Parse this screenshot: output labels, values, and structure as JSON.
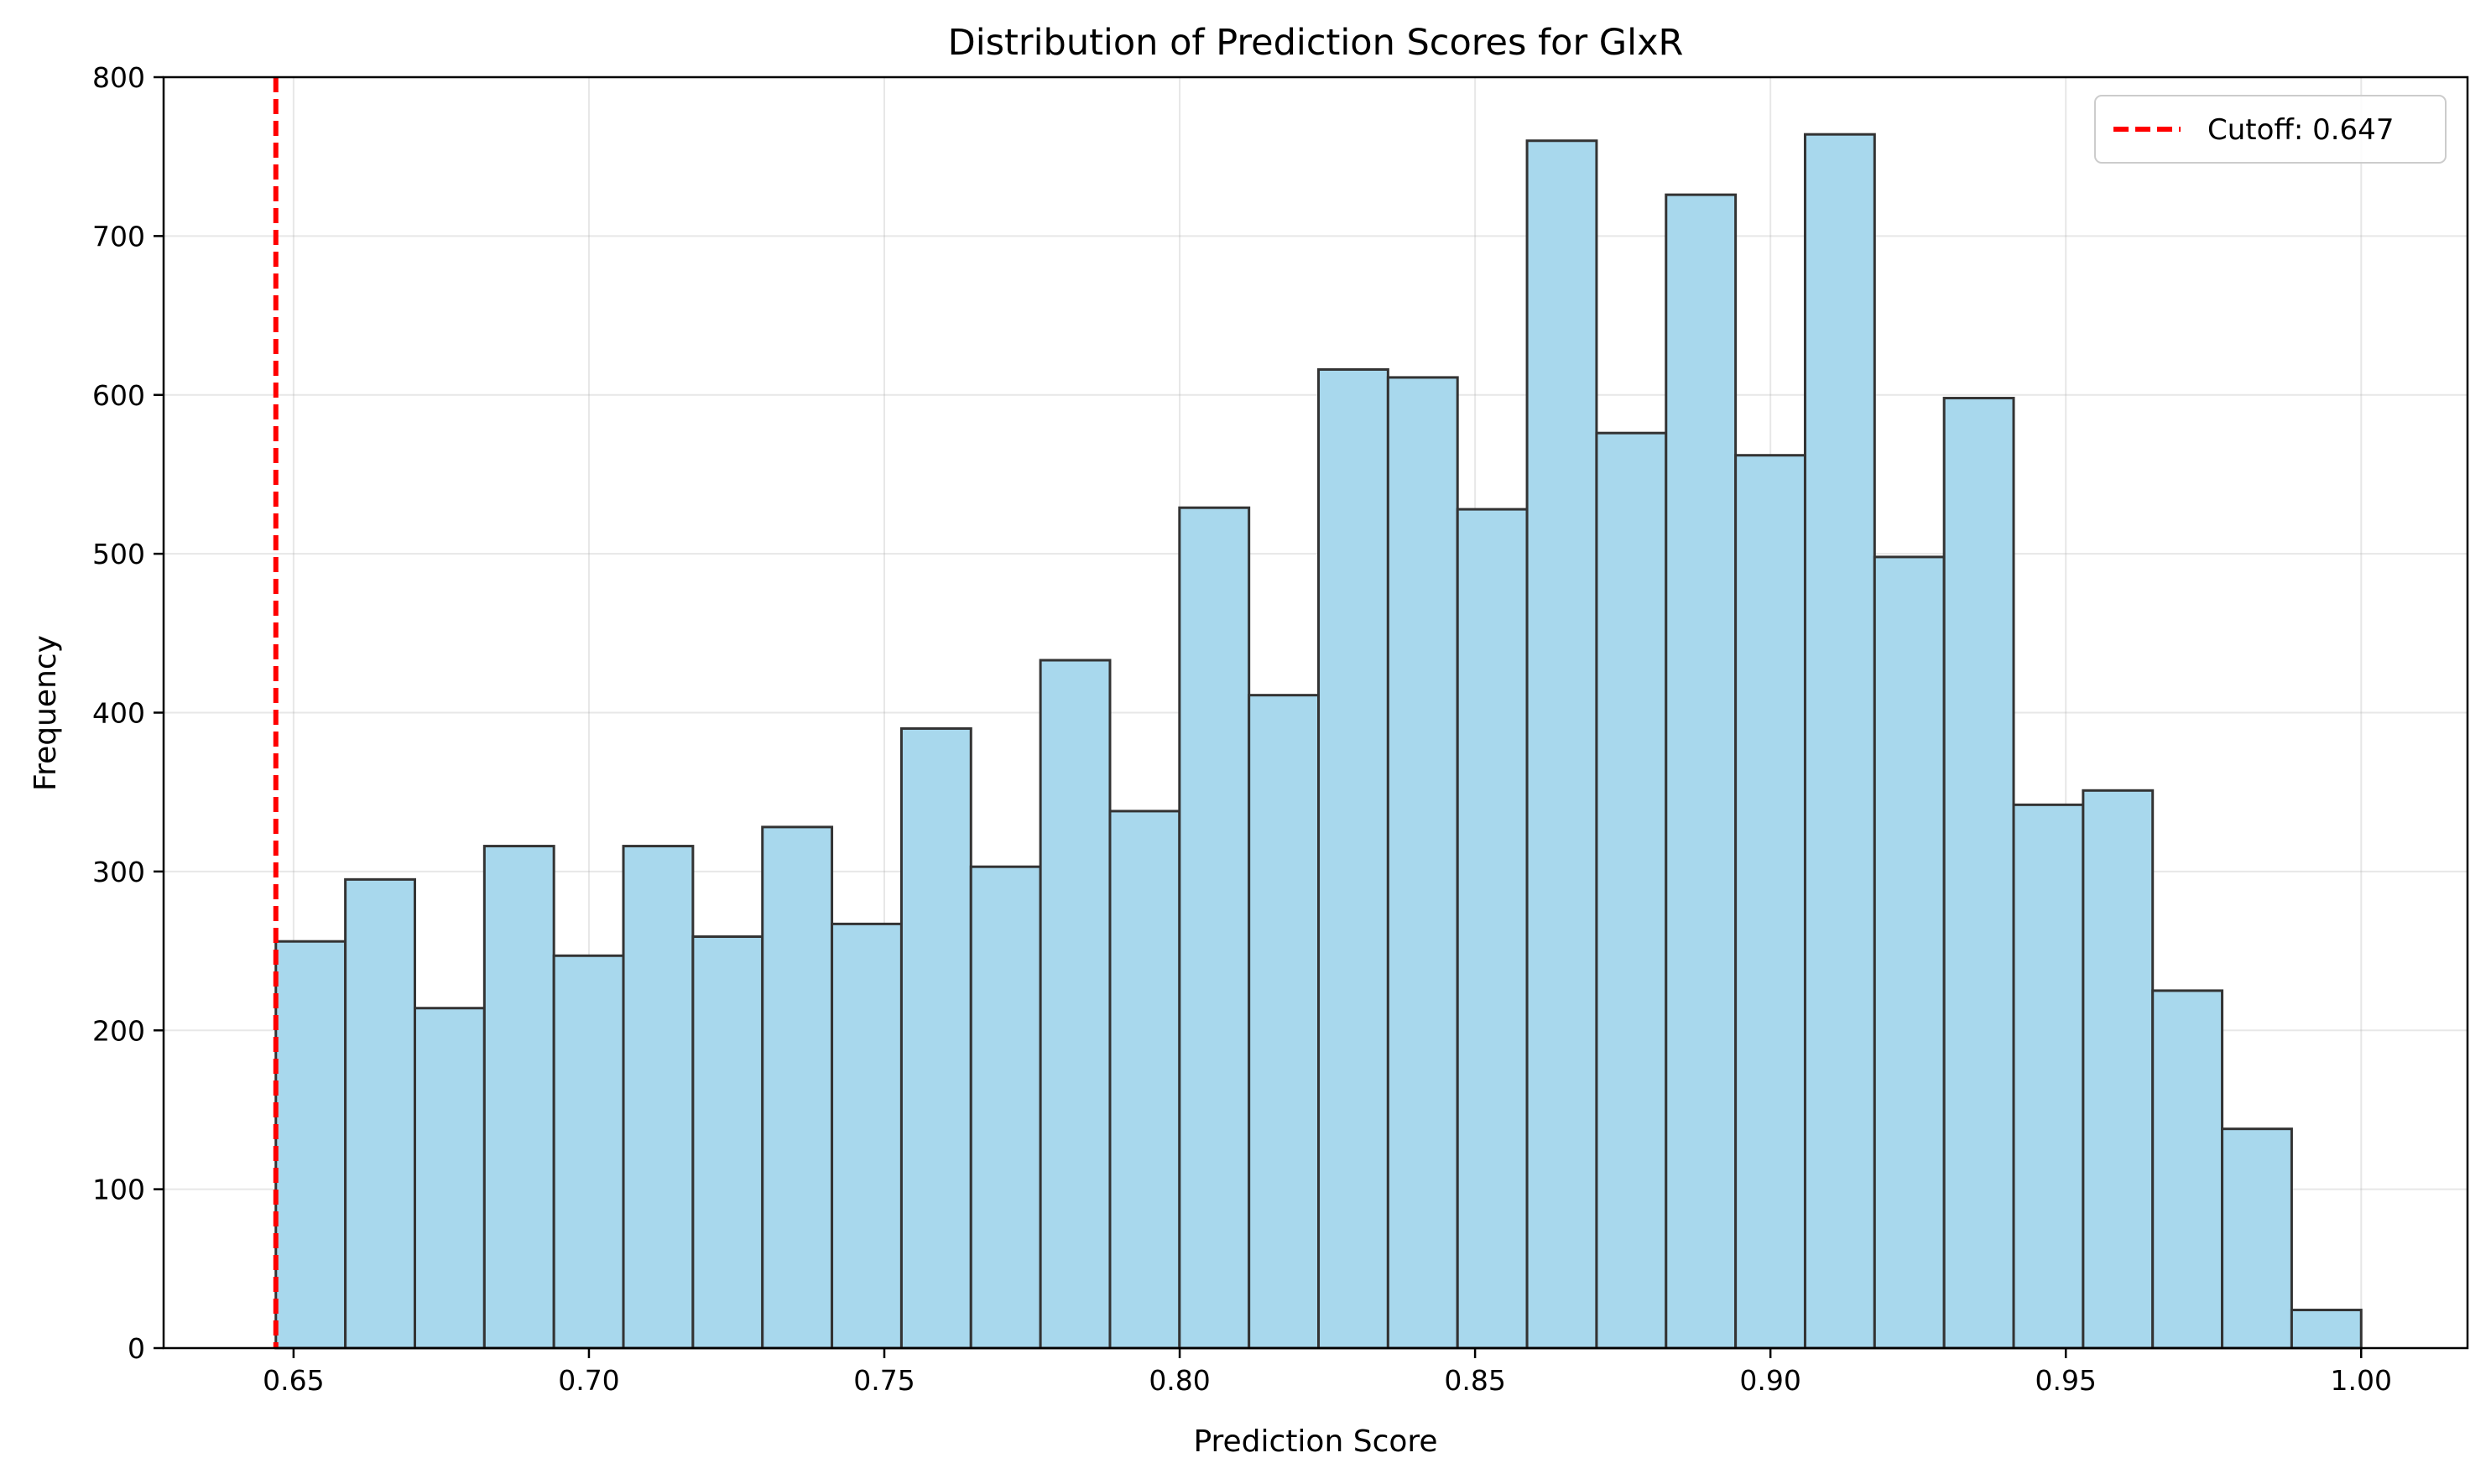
{
  "chart_data": {
    "type": "bar",
    "title": "Distribution of Prediction Scores for GlxR",
    "xlabel": "Prediction Score",
    "ylabel": "Frequency",
    "xlim": [
      0.628,
      1.018
    ],
    "ylim": [
      0,
      800
    ],
    "x_ticks": [
      0.65,
      0.7,
      0.75,
      0.8,
      0.85,
      0.9,
      0.95,
      1.0
    ],
    "x_tick_labels": [
      "0.65",
      "0.70",
      "0.75",
      "0.80",
      "0.85",
      "0.90",
      "0.95",
      "1.00"
    ],
    "y_ticks": [
      0,
      100,
      200,
      300,
      400,
      500,
      600,
      700,
      800
    ],
    "y_tick_labels": [
      "0",
      "100",
      "200",
      "300",
      "400",
      "500",
      "600",
      "700",
      "800"
    ],
    "grid": true,
    "legend_position": "top-right",
    "bin_start": 0.647,
    "bin_end": 1.0,
    "values": [
      256,
      295,
      214,
      316,
      247,
      316,
      259,
      328,
      267,
      390,
      303,
      433,
      338,
      529,
      411,
      616,
      611,
      528,
      760,
      576,
      726,
      562,
      764,
      498,
      598,
      342,
      351,
      225,
      138,
      24
    ],
    "cutoff": {
      "value": 0.647,
      "label": "Cutoff: 0.647",
      "color": "#ff0000"
    },
    "bar_color": "#a8d8ed",
    "bar_edge_color": "#333333"
  }
}
